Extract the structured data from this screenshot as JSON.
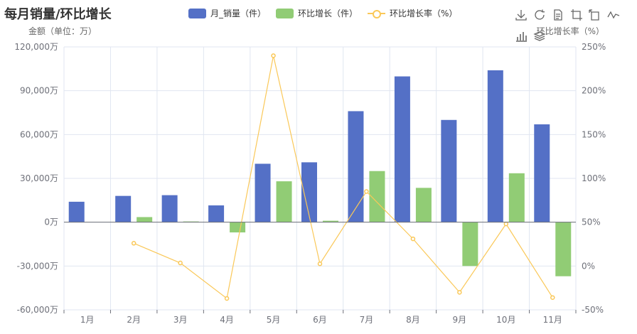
{
  "title": "每月销量/环比增长",
  "legend": [
    {
      "label": "月_销量（件）",
      "color": "#5470c6",
      "kind": "bar"
    },
    {
      "label": "环比增长（件）",
      "color": "#91cc75",
      "kind": "bar"
    },
    {
      "label": "环比增长率（%）",
      "color": "#fac858",
      "kind": "line"
    }
  ],
  "toolbox": [
    "download-icon",
    "refresh-icon",
    "data-view-icon",
    "zoom-icon",
    "zoom-reset-icon",
    "line-chart-icon",
    "bar-chart-icon",
    "stack-icon"
  ],
  "chart_data": {
    "type": "bar",
    "categories": [
      "1月",
      "2月",
      "3月",
      "4月",
      "5月",
      "6月",
      "7月",
      "8月",
      "9月",
      "10月",
      "11月"
    ],
    "series": [
      {
        "name": "月_销量（件）",
        "type": "bar",
        "axis": "left",
        "values": [
          14000,
          18000,
          18500,
          11500,
          40000,
          41000,
          76000,
          99800,
          70000,
          104000,
          67000
        ]
      },
      {
        "name": "环比增长（件）",
        "type": "bar",
        "axis": "left",
        "values": [
          null,
          3500,
          500,
          -7000,
          28000,
          1000,
          35000,
          23500,
          -30000,
          33500,
          -37000
        ]
      },
      {
        "name": "环比增长率（%）",
        "type": "line",
        "axis": "right",
        "values": [
          null,
          26,
          3.5,
          -37,
          240,
          2.5,
          85,
          31,
          -30,
          48,
          -36
        ]
      }
    ],
    "y_left": {
      "label": "金额（单位：万）",
      "min": -60000,
      "max": 120000,
      "ticks": [
        "-60,000万",
        "-30,000万",
        "0万",
        "30,000万",
        "60,000万",
        "90,000万",
        "120,000万"
      ]
    },
    "y_right": {
      "label": "环比增长率（%）",
      "min": -50,
      "max": 250,
      "ticks": [
        "-50%",
        "0%",
        "50%",
        "100%",
        "150%",
        "200%",
        "250%"
      ]
    },
    "grid": true,
    "legend_position": "top-center"
  }
}
